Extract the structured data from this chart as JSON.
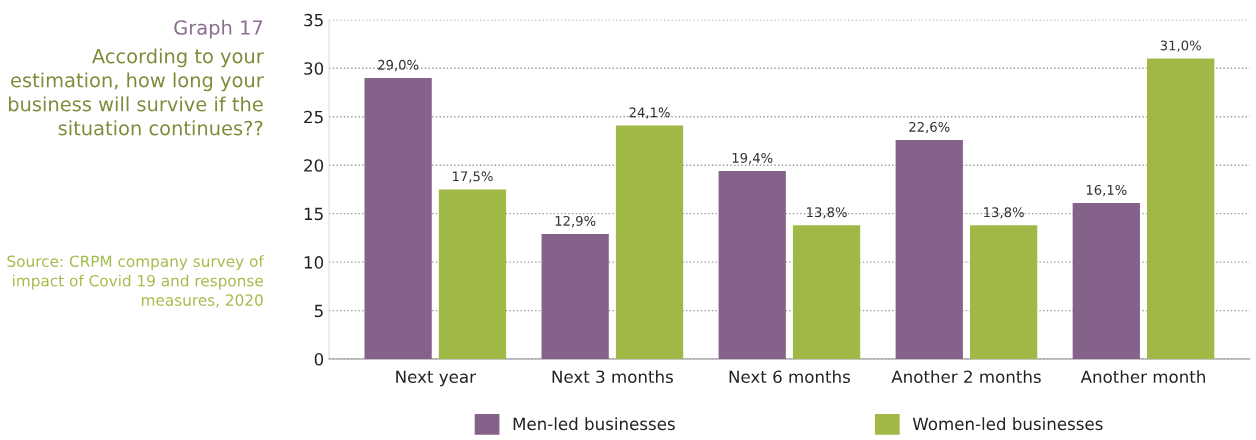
{
  "chart_data": {
    "type": "bar",
    "title": "Graph 17",
    "subtitle": "According to your estimation, how long your business will survive if the situation continues??",
    "annotations": [
      "Source: CRPM company survey of impact of Covid 19 and response measures, 2020"
    ],
    "categories": [
      "Next year",
      "Next 3 months",
      "Next 6 months",
      "Another 2 months",
      "Another month"
    ],
    "series": [
      {
        "name": "Men-led businesses",
        "color": "#85628a",
        "values": [
          29.0,
          12.9,
          19.4,
          22.6,
          16.1
        ],
        "value_labels": [
          "29,0%",
          "12,9%",
          "19,4%",
          "22,6%",
          "16,1%"
        ]
      },
      {
        "name": "Women-led businesses",
        "color": "#a0b946",
        "values": [
          17.5,
          24.1,
          13.8,
          13.8,
          31.0
        ],
        "value_labels": [
          "17,5%",
          "24,1%",
          "13,8%",
          "13,8%",
          "31,0%"
        ]
      }
    ],
    "ylim": [
      0,
      35
    ],
    "yticks": [
      0,
      5,
      10,
      15,
      20,
      25,
      30,
      35
    ],
    "grid": "y",
    "legend": "bottom"
  }
}
